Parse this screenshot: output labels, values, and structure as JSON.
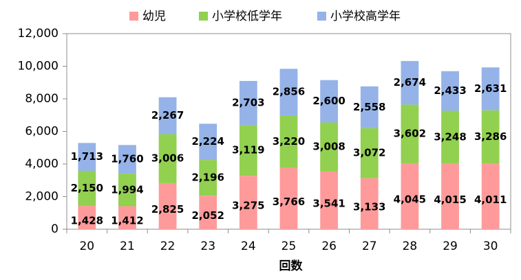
{
  "chart_data": {
    "type": "bar",
    "stacked": true,
    "title": "",
    "xlabel": "回数",
    "ylabel": "",
    "ylim": [
      0,
      12000
    ],
    "yticks": [
      0,
      2000,
      4000,
      6000,
      8000,
      10000,
      12000
    ],
    "ytick_labels": [
      "0",
      "2,000",
      "4,000",
      "6,000",
      "8,000",
      "10,000",
      "12,000"
    ],
    "grid": false,
    "legend_position": "top",
    "categories": [
      "20",
      "21",
      "22",
      "23",
      "24",
      "25",
      "26",
      "27",
      "28",
      "29",
      "30"
    ],
    "series": [
      {
        "name": "幼児",
        "color": "#FF9A9A",
        "values": [
          1428,
          1412,
          2825,
          2052,
          3275,
          3766,
          3541,
          3133,
          4045,
          4015,
          4011
        ],
        "labels": [
          "1,428",
          "1,412",
          "2,825",
          "2,052",
          "3,275",
          "3,766",
          "3,541",
          "3,133",
          "4,045",
          "4,015",
          "4,011"
        ]
      },
      {
        "name": "小学校低学年",
        "color": "#92D050",
        "values": [
          2150,
          1994,
          3006,
          2196,
          3119,
          3220,
          3008,
          3072,
          3602,
          3248,
          3286
        ],
        "labels": [
          "2,150",
          "1,994",
          "3,006",
          "2,196",
          "3,119",
          "3,220",
          "3,008",
          "3,072",
          "3,602",
          "3,248",
          "3,286"
        ]
      },
      {
        "name": "小学校高学年",
        "color": "#95B3E8",
        "values": [
          1713,
          1760,
          2267,
          2224,
          2703,
          2856,
          2600,
          2558,
          2674,
          2433,
          2631
        ],
        "labels": [
          "1,713",
          "1,760",
          "2,267",
          "2,224",
          "2,703",
          "2,856",
          "2,600",
          "2,558",
          "2,674",
          "2,433",
          "2,631"
        ]
      }
    ]
  }
}
